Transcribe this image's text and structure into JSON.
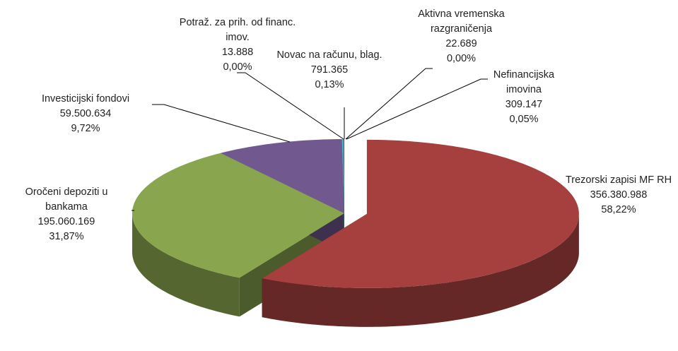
{
  "chart_data": {
    "type": "pie",
    "categories": [
      "Trezorski zapisi MF RH",
      "Oročeni depoziti u bankama",
      "Investicijski fondovi",
      "Potraž. za prih. od financ. imov.",
      "Novac na računu, blag.",
      "Aktivna vremenska razgraničenja",
      "Nefinancijska imovina"
    ],
    "values": [
      356380988,
      195060169,
      59500634,
      13888,
      791365,
      22689,
      309147
    ],
    "value_labels": [
      "356.380.988",
      "195.060.169",
      "59.500.634",
      "13.888",
      "791.365",
      "22.689",
      "309.147"
    ],
    "percents": [
      58.22,
      31.87,
      9.72,
      0.0,
      0.13,
      0.0,
      0.05
    ],
    "percent_labels": [
      "58,22%",
      "31,87%",
      "9,72%",
      "0,00%",
      "0,13%",
      "0,00%",
      "0,05%"
    ],
    "colors": [
      "#a5403f",
      "#89a54e",
      "#71588f",
      "#4f81bd",
      "#4bacc6",
      "#f79646",
      "#2c4d75"
    ]
  }
}
